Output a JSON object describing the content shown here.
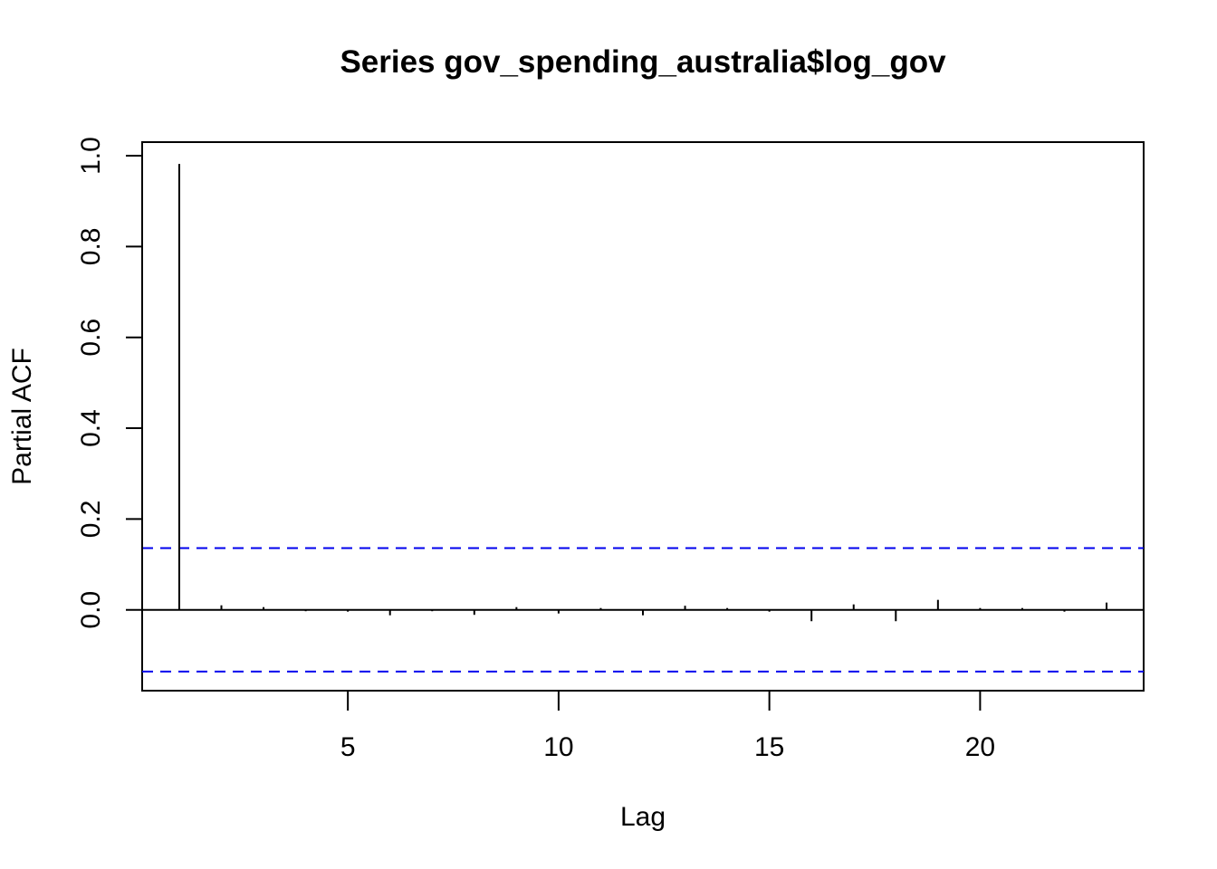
{
  "chart_data": {
    "type": "bar",
    "title": "Series  gov_spending_australia$log_gov",
    "xlabel": "Lag",
    "ylabel": "Partial ACF",
    "x_ticks": [
      "5",
      "10",
      "15",
      "20"
    ],
    "y_ticks": [
      "0.0",
      "0.2",
      "0.4",
      "0.6",
      "0.8",
      "1.0"
    ],
    "xlim": [
      0.12,
      23.88
    ],
    "ylim": [
      -0.178,
      1.03
    ],
    "lags": [
      1,
      2,
      3,
      4,
      5,
      6,
      7,
      8,
      9,
      10,
      11,
      12,
      13,
      14,
      15,
      16,
      17,
      18,
      19,
      20,
      21,
      22,
      23
    ],
    "values": [
      0.982,
      0.01,
      0.006,
      -0.003,
      -0.004,
      -0.012,
      -0.003,
      -0.011,
      0.006,
      -0.008,
      0.004,
      -0.012,
      0.009,
      0.004,
      -0.004,
      -0.025,
      0.012,
      -0.025,
      0.022,
      0.004,
      0.004,
      -0.004,
      0.016
    ],
    "confidence_bound": 0.136,
    "colors": {
      "bars": "#000000",
      "ci_lines": "#0000ee",
      "axis": "#000000"
    },
    "grid": false,
    "legend": "none"
  }
}
